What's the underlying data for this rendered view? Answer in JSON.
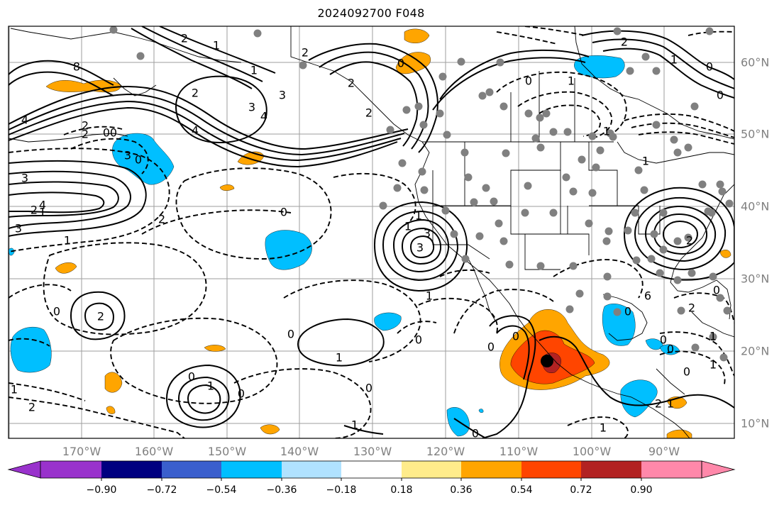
{
  "title": "2024092700 F048",
  "lon_labels": [
    "170°W",
    "160°W",
    "150°W",
    "140°W",
    "130°W",
    "120°W",
    "110°W",
    "100°W",
    "90°W"
  ],
  "lat_labels": [
    "60°N",
    "50°N",
    "40°N",
    "30°N",
    "20°N",
    "10°N"
  ],
  "colorbar": {
    "ticks": [
      "−0.90",
      "−0.72",
      "−0.54",
      "−0.36",
      "−0.18",
      "0.18",
      "0.36",
      "0.54",
      "0.72",
      "0.90"
    ],
    "colors": [
      "#9932cc",
      "#000080",
      "#3a5fcd",
      "#00bfff",
      "#b0e2ff",
      "#ffffff",
      "#ffec8b",
      "#ffa500",
      "#ff4500",
      "#b22222",
      "#ff88aa"
    ]
  },
  "contour_labels": [
    "8",
    "4",
    "3",
    "2",
    "0",
    "1",
    "1",
    "4",
    "4",
    "3",
    "2",
    "2",
    "0",
    "1",
    "3",
    "2",
    "2",
    "0",
    "1",
    "2",
    "3",
    "0",
    "2",
    "0",
    "0",
    "3",
    "2",
    "2",
    "3",
    "4",
    "0",
    "1",
    "1",
    "0",
    "1",
    "0",
    "0",
    "2",
    "1",
    "2",
    "3",
    "1",
    "1",
    "2",
    "6",
    "0",
    "1",
    "2",
    "0",
    "1",
    "1",
    "0",
    "1",
    "0",
    "0",
    "1",
    "2",
    "0",
    "1",
    "0",
    "0",
    "1",
    "0",
    "0",
    "1",
    "2",
    "1",
    "0",
    "0"
  ],
  "map": {
    "fill_colors": {
      "light_orange": "#ffa500",
      "dark_orange": "#ff4500",
      "red": "#b22222",
      "light_blue": "#00bfff"
    },
    "station_color": "#808080",
    "center_marker_color": "#000000"
  }
}
